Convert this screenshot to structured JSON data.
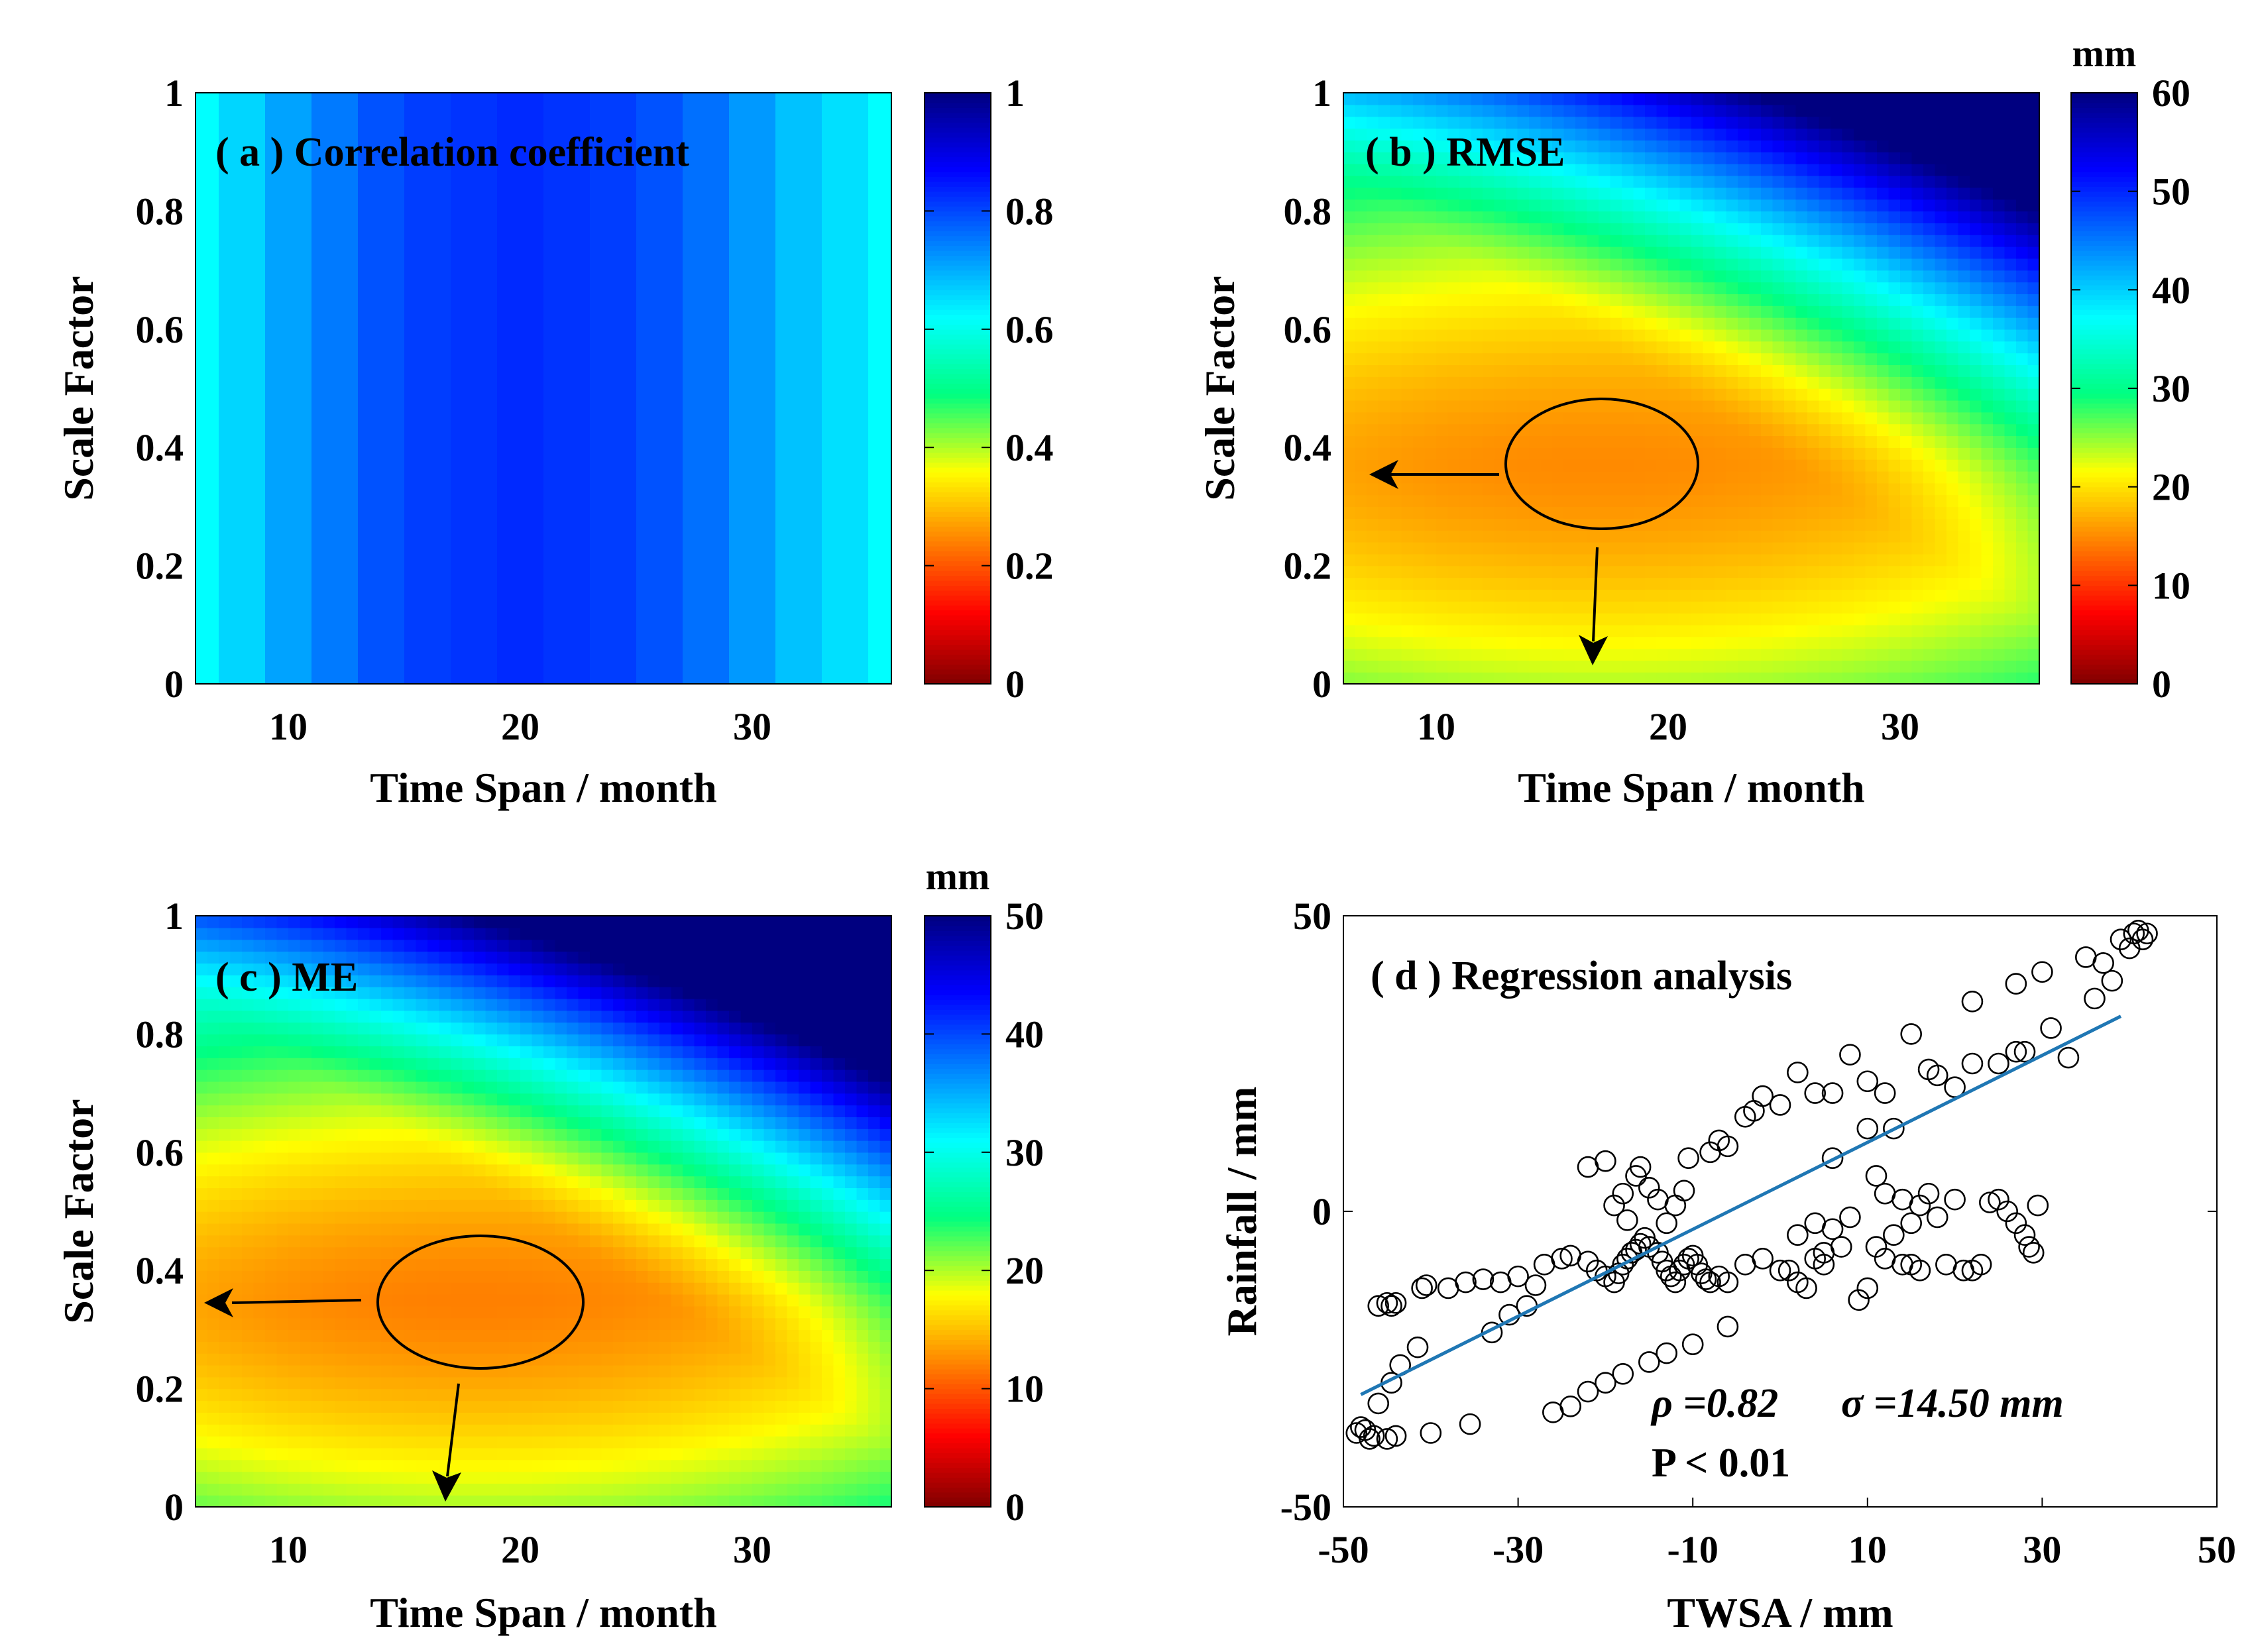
{
  "chart_data": [
    {
      "id": "a",
      "type": "heatmap",
      "title": "( a ) Correlation coefficient",
      "xlabel": "Time Span / month",
      "ylabel": "Scale Factor",
      "xticks": [
        "10",
        "20",
        "30"
      ],
      "yticks": [
        "0",
        "0.2",
        "0.4",
        "0.6",
        "0.8",
        "1"
      ],
      "xlim": [
        6,
        36
      ],
      "ylim": [
        0,
        1
      ],
      "colorbar": {
        "min": 0,
        "max": 1,
        "ticks": [
          "0",
          "0.2",
          "0.4",
          "0.6",
          "0.8",
          "1"
        ],
        "unit": ""
      },
      "columns_x": [
        6,
        8,
        10,
        12,
        14,
        16,
        18,
        20,
        22,
        24,
        26,
        28,
        30,
        32,
        34,
        36
      ],
      "columns_value": [
        0.62,
        0.66,
        0.71,
        0.75,
        0.79,
        0.81,
        0.82,
        0.83,
        0.82,
        0.81,
        0.79,
        0.76,
        0.72,
        0.68,
        0.65,
        0.62
      ]
    },
    {
      "id": "b",
      "type": "heatmap",
      "title": "( b ) RMSE",
      "xlabel": "Time Span / month",
      "ylabel": "Scale Factor",
      "xticks": [
        "10",
        "20",
        "30"
      ],
      "yticks": [
        "0",
        "0.2",
        "0.4",
        "0.6",
        "0.8",
        "1"
      ],
      "xlim": [
        6,
        36
      ],
      "ylim": [
        0,
        1
      ],
      "colorbar": {
        "min": 0,
        "max": 60,
        "ticks": [
          "0",
          "10",
          "20",
          "30",
          "40",
          "50",
          "60"
        ],
        "unit": "mm"
      },
      "minimum": {
        "x": 17,
        "y": 0.37,
        "value": 15
      },
      "corner_max": 60
    },
    {
      "id": "c",
      "type": "heatmap",
      "title": "( c ) ME",
      "xlabel": "Time Span / month",
      "ylabel": "Scale Factor",
      "xticks": [
        "10",
        "20",
        "30"
      ],
      "yticks": [
        "0",
        "0.2",
        "0.4",
        "0.6",
        "0.8",
        "1"
      ],
      "xlim": [
        6,
        36
      ],
      "ylim": [
        0,
        1
      ],
      "colorbar": {
        "min": 0,
        "max": 50,
        "ticks": [
          "0",
          "10",
          "20",
          "30",
          "40",
          "50"
        ],
        "unit": "mm"
      },
      "minimum": {
        "x": 18,
        "y": 0.35,
        "value": 12
      },
      "corner_max": 50
    },
    {
      "id": "d",
      "type": "scatter",
      "title": "( d ) Regression analysis",
      "xlabel": "TWSA / mm",
      "ylabel": "Rainfall / mm",
      "xticks": [
        "-50",
        "-30",
        "-10",
        "10",
        "30",
        "50"
      ],
      "yticks": [
        "-50",
        "0",
        "50"
      ],
      "xlim": [
        -50,
        50
      ],
      "ylim": [
        -50,
        50
      ],
      "stats": {
        "rho": "ρ =0.82",
        "sigma": "σ =14.50 mm",
        "p": "P < 0.01"
      },
      "fit_line": {
        "x": [
          -48,
          39
        ],
        "y": [
          -31,
          33
        ]
      },
      "points": [
        [
          -48.5,
          -37.5
        ],
        [
          -48,
          -36.5
        ],
        [
          -47.5,
          -37
        ],
        [
          -47,
          -38.5
        ],
        [
          -46.5,
          -38
        ],
        [
          -45,
          -38.5
        ],
        [
          -44,
          -38
        ],
        [
          -46,
          -32.5
        ],
        [
          -44.5,
          -29
        ],
        [
          -43.5,
          -26
        ],
        [
          -41.5,
          -23
        ],
        [
          -40,
          -37.5
        ],
        [
          -35.5,
          -36
        ],
        [
          -33,
          -20.5
        ],
        [
          -31,
          -17.5
        ],
        [
          -29,
          -16
        ],
        [
          -26,
          -34
        ],
        [
          -24,
          -33
        ],
        [
          -22,
          -30.5
        ],
        [
          -20,
          -29
        ],
        [
          -18,
          -27.5
        ],
        [
          -15,
          -25.5
        ],
        [
          -13,
          -24
        ],
        [
          -10,
          -22.5
        ],
        [
          -6,
          -19.5
        ],
        [
          -46,
          -16
        ],
        [
          -45,
          -15.5
        ],
        [
          -44.5,
          -16
        ],
        [
          -44,
          -15.5
        ],
        [
          -41,
          -13
        ],
        [
          -40.5,
          -12.5
        ],
        [
          -38,
          -13
        ],
        [
          -36,
          -12
        ],
        [
          -34,
          -11.5
        ],
        [
          -32,
          -12
        ],
        [
          -30,
          -11
        ],
        [
          -28,
          -12.5
        ],
        [
          -27,
          -9
        ],
        [
          -25,
          -8
        ],
        [
          -24,
          -7.5
        ],
        [
          -22,
          -8.5
        ],
        [
          -21,
          -10
        ],
        [
          -20,
          -11
        ],
        [
          -19,
          -12
        ],
        [
          -18.5,
          -10.5
        ],
        [
          -18,
          -9
        ],
        [
          -17.5,
          -8
        ],
        [
          -17,
          -7
        ],
        [
          -16.5,
          -6.5
        ],
        [
          -16,
          -5.5
        ],
        [
          -15.5,
          -4.5
        ],
        [
          -15,
          -6
        ],
        [
          -14,
          -7
        ],
        [
          -13.5,
          -8.5
        ],
        [
          -13,
          -10
        ],
        [
          -12.5,
          -11
        ],
        [
          -12,
          -12
        ],
        [
          -11.5,
          -10
        ],
        [
          -11,
          -9
        ],
        [
          -10.5,
          -8
        ],
        [
          -10,
          -7.5
        ],
        [
          -9.5,
          -9
        ],
        [
          -9,
          -10.5
        ],
        [
          -8.5,
          -11.5
        ],
        [
          -8,
          -12
        ],
        [
          -7,
          -11
        ],
        [
          -22,
          7.5
        ],
        [
          -20,
          8.5
        ],
        [
          -19,
          1
        ],
        [
          -18,
          3
        ],
        [
          -17.5,
          -1.5
        ],
        [
          -16.5,
          6
        ],
        [
          -16,
          7.5
        ],
        [
          -15,
          4
        ],
        [
          -14,
          2
        ],
        [
          -13,
          -2
        ],
        [
          -12,
          1
        ],
        [
          -11,
          3.5
        ],
        [
          -10.5,
          9
        ],
        [
          -7,
          12
        ],
        [
          -6,
          11
        ],
        [
          -4,
          16
        ],
        [
          -3,
          17
        ],
        [
          -2,
          19.5
        ],
        [
          0,
          18
        ],
        [
          2,
          23.5
        ],
        [
          4,
          20
        ],
        [
          6,
          20
        ],
        [
          8,
          26.5
        ],
        [
          10,
          22
        ],
        [
          12,
          20
        ],
        [
          15,
          30
        ],
        [
          17,
          24
        ],
        [
          18,
          23
        ],
        [
          20,
          21
        ],
        [
          22,
          25
        ],
        [
          25,
          25
        ],
        [
          27,
          27
        ],
        [
          28,
          27
        ],
        [
          31,
          31
        ],
        [
          30,
          40.5
        ],
        [
          27,
          38.5
        ],
        [
          22,
          35.5
        ],
        [
          33,
          26
        ],
        [
          35,
          43
        ],
        [
          36,
          36
        ],
        [
          37,
          42
        ],
        [
          38,
          39
        ],
        [
          39,
          46
        ],
        [
          40,
          44.5
        ],
        [
          40.5,
          47
        ],
        [
          41,
          47.5
        ],
        [
          41.5,
          46
        ],
        [
          42,
          47
        ],
        [
          1,
          -10
        ],
        [
          2,
          -12
        ],
        [
          3,
          -13
        ],
        [
          4,
          -8
        ],
        [
          5,
          -9
        ],
        [
          6,
          -3
        ],
        [
          7,
          -6
        ],
        [
          8,
          -1
        ],
        [
          9,
          -15
        ],
        [
          10,
          -13
        ],
        [
          11,
          -6
        ],
        [
          12,
          -8
        ],
        [
          13,
          -4
        ],
        [
          14,
          -9
        ],
        [
          15,
          -2
        ],
        [
          16,
          1
        ],
        [
          17,
          3
        ],
        [
          18,
          -1
        ],
        [
          19,
          -9
        ],
        [
          20,
          2
        ],
        [
          21,
          -10
        ],
        [
          22,
          -10
        ],
        [
          23,
          -9
        ],
        [
          24,
          1.5
        ],
        [
          25,
          2
        ],
        [
          26,
          0
        ],
        [
          27,
          -2
        ],
        [
          28,
          -4
        ],
        [
          28.5,
          -6
        ],
        [
          29,
          -7
        ],
        [
          29.5,
          1
        ],
        [
          -8,
          10
        ],
        [
          -6,
          -12
        ],
        [
          -4,
          -9
        ],
        [
          -2,
          -8
        ],
        [
          0,
          -10
        ],
        [
          2,
          -4
        ],
        [
          4,
          -2
        ],
        [
          5,
          -7
        ],
        [
          6,
          9
        ],
        [
          10,
          14
        ],
        [
          11,
          6
        ],
        [
          12,
          3
        ],
        [
          13,
          14
        ],
        [
          14,
          2
        ],
        [
          15,
          -9
        ],
        [
          16,
          -10
        ]
      ]
    }
  ]
}
